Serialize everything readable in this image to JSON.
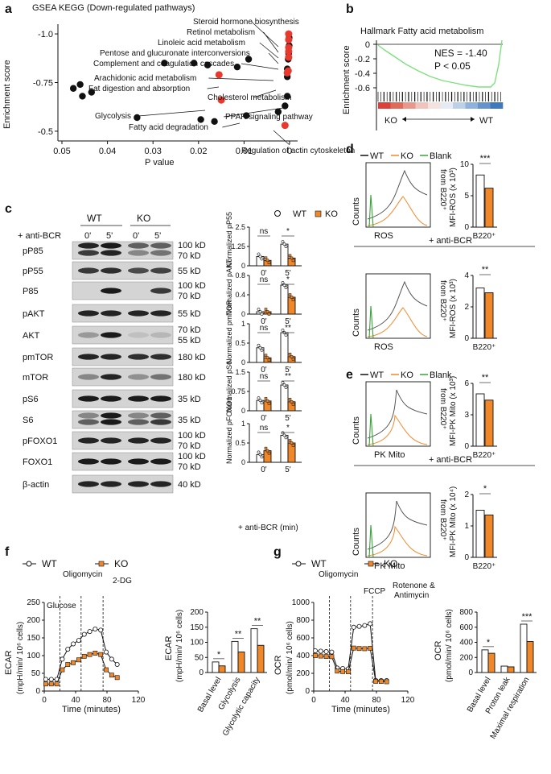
{
  "panel_labels": {
    "a": "a",
    "b": "b",
    "c": "c",
    "d": "d",
    "e": "e",
    "f": "f",
    "g": "g"
  },
  "colors": {
    "red": "#e8392e",
    "orange": "#f0882a",
    "green": "#3aa23a",
    "black": "#111111",
    "gsea_line": "#7fe07f"
  },
  "panel_a": {
    "title": "GSEA KEGG (Down-regulated pathways)",
    "ylabel": "Enrichment score",
    "xlabel": "P value",
    "annotations": [
      "Steroid hormone biosynthesis",
      "Retinol metabolism",
      "Linoleic acid metabolism",
      "Pentose and glucuronate interconversions",
      "Complement and coagulation cascades",
      "Arachidonic acid metabolism",
      "Fat digestion and absorption",
      "Cholesterol metabolism",
      "Glycolysis",
      "Fatty acid degradation",
      "PPAR signaling pathway",
      "Regulation of actin cytoskeleton"
    ]
  },
  "panel_b": {
    "title": "Hallmark Fatty acid metabolism",
    "ylabel": "Enrichment score",
    "nes": "NES = -1.40",
    "p": "P < 0.05",
    "left": "KO",
    "right": "WT"
  },
  "panel_c": {
    "treatment": "+ anti-BCR",
    "groups": [
      "WT",
      "KO"
    ],
    "times": [
      "0'",
      "5'",
      "0'",
      "5'"
    ],
    "blots": [
      {
        "name": "pP85",
        "mw": [
          "100 kD",
          "70 kD"
        ]
      },
      {
        "name": "pP55",
        "mw": [
          "55 kD"
        ]
      },
      {
        "name": "P85",
        "mw": [
          "100 kD",
          "70 kD"
        ]
      },
      {
        "name": "pAKT",
        "mw": [
          "55 kD"
        ]
      },
      {
        "name": "AKT",
        "mw": [
          "70 kD",
          "55 kD"
        ]
      },
      {
        "name": "pmTOR",
        "mw": [
          "180 kD"
        ]
      },
      {
        "name": "mTOR",
        "mw": [
          "180 kD"
        ]
      },
      {
        "name": "pS6",
        "mw": [
          "35 kD"
        ]
      },
      {
        "name": "S6",
        "mw": [
          "35 kD"
        ]
      },
      {
        "name": "pFOXO1",
        "mw": [
          "100 kD",
          "70 kD"
        ]
      },
      {
        "name": "FOXO1",
        "mw": [
          "100 kD",
          "70 kD"
        ]
      },
      {
        "name": "β-actin",
        "mw": [
          "40 kD"
        ]
      }
    ],
    "legend": [
      "WT",
      "KO"
    ],
    "xlabel": "+ anti-BCR (min)"
  },
  "panel_d": {
    "legend": [
      "WT",
      "KO",
      "Blank"
    ],
    "treat": "+ anti-BCR",
    "xlabel": "ROS",
    "gate": "from B220⁺",
    "ylabel": "Counts",
    "bar_ylabel": "MFI-ROS (x 10³)",
    "cat": "B220⁺"
  },
  "panel_e": {
    "legend": [
      "WT",
      "KO",
      "Blank"
    ],
    "treat": "+ anti-BCR",
    "xlabel": "PK Mito",
    "gate": "from B220⁺",
    "ylabel": "Counts",
    "bar_ylabel_top": "MFI-PK Mito (x 10³)",
    "bar_ylabel_bot": "MFI-PK Mito (x 10⁴)",
    "cat": "B220⁺"
  },
  "panel_f": {
    "legend": [
      "WT",
      "KO"
    ],
    "events": [
      "Glucose",
      "Oligomycin",
      "2-DG"
    ],
    "ylabel": "ECAR",
    "yunit": "(mpH/min/ 10⁶ cells)",
    "xlabel": "Time (minutes)",
    "bar_cats": [
      "Basal level",
      "Glycolysis",
      "Glycolytic capacity"
    ]
  },
  "panel_g": {
    "legend": [
      "WT",
      "KO"
    ],
    "events": [
      "Oligomycin",
      "FCCP",
      "Rotenone &",
      "Antimycin"
    ],
    "ylabel": "OCR",
    "yunit": "(pmol/min/ 10⁶ cells)",
    "xlabel": "Time (minutes)",
    "bar_cats": [
      "Basal level",
      "Proton leak",
      "Maximal respiration"
    ]
  },
  "chart_data": [
    {
      "type": "scatter",
      "panel": "a",
      "title": "GSEA KEGG (Down-regulated pathways)",
      "xlabel": "P value",
      "ylabel": "Enrichment score",
      "xlim": [
        0.05,
        0
      ],
      "ylim": [
        -0.45,
        -1.05
      ],
      "xticks": [
        "0.05",
        "0.04",
        "0.03",
        "0.02",
        "0.01",
        "0"
      ],
      "yticks": [
        "-1.0",
        "-0.75",
        "-0.5"
      ],
      "black_points": [
        [
          0.0475,
          -0.72
        ],
        [
          0.046,
          -0.74
        ],
        [
          0.0455,
          -0.68
        ],
        [
          0.0435,
          -0.7
        ],
        [
          0.0335,
          -0.57
        ],
        [
          0.0275,
          -0.85
        ],
        [
          0.021,
          -0.85
        ],
        [
          0.0195,
          -0.56
        ],
        [
          0.018,
          -0.84
        ],
        [
          0.0165,
          -0.55
        ],
        [
          0.0115,
          -0.83
        ],
        [
          0.009,
          -0.87
        ],
        [
          0.0095,
          -0.58
        ],
        [
          0.0025,
          -0.6
        ],
        [
          0.001,
          -0.63
        ],
        [
          0.0005,
          -0.68
        ],
        [
          0.0005,
          -0.78
        ],
        [
          0.0005,
          -0.82
        ],
        [
          0.0003,
          -0.87
        ],
        [
          0.0002,
          -0.9
        ],
        [
          0.0001,
          -0.94
        ],
        [
          0.0001,
          -0.98
        ]
      ],
      "red_points": [
        [
          0.0002,
          -1.0
        ],
        [
          0.0002,
          -0.97
        ],
        [
          0.0002,
          -0.93
        ],
        [
          0.0002,
          -0.91
        ],
        [
          0.0002,
          -0.88
        ],
        [
          0.0005,
          -0.8
        ],
        [
          0.0003,
          -0.81
        ],
        [
          0.0155,
          -0.79
        ],
        [
          0.015,
          -0.66
        ],
        [
          0.001,
          -0.53
        ]
      ]
    },
    {
      "type": "bar",
      "panel": "c",
      "ylabel": "Normalized pP55",
      "categories": [
        "0'",
        "5'"
      ],
      "series": [
        {
          "name": "WT",
          "values": [
            0.6,
            1.4
          ]
        },
        {
          "name": "KO",
          "values": [
            0.35,
            0.5
          ]
        }
      ],
      "ylim": [
        0,
        2.5
      ],
      "stats": [
        "ns",
        "*"
      ]
    },
    {
      "type": "bar",
      "panel": "c",
      "ylabel": "Normalized pAKT",
      "categories": [
        "0'",
        "5'"
      ],
      "series": [
        {
          "name": "WT",
          "values": [
            0.05,
            0.6
          ]
        },
        {
          "name": "KO",
          "values": [
            0.05,
            0.35
          ]
        }
      ],
      "ylim": [
        0,
        0.8
      ],
      "stats": [
        "ns",
        "*"
      ]
    },
    {
      "type": "bar",
      "panel": "c",
      "ylabel": "Normalized pmTOR",
      "categories": [
        "0'",
        "5'"
      ],
      "series": [
        {
          "name": "WT",
          "values": [
            0.38,
            0.77
          ]
        },
        {
          "name": "KO",
          "values": [
            0.12,
            0.15
          ]
        }
      ],
      "ylim": [
        0,
        1.0
      ],
      "stats": [
        "ns",
        "**"
      ]
    },
    {
      "type": "bar",
      "panel": "c",
      "ylabel": "Normalized pS6",
      "categories": [
        "0'",
        "5'"
      ],
      "series": [
        {
          "name": "WT",
          "values": [
            0.4,
            1.0
          ]
        },
        {
          "name": "KO",
          "values": [
            0.38,
            0.35
          ]
        }
      ],
      "ylim": [
        0,
        1.5
      ],
      "stats": [
        "ns",
        "**"
      ]
    },
    {
      "type": "bar",
      "panel": "c",
      "ylabel": "Normalized pFOXO1",
      "categories": [
        "0'",
        "5'"
      ],
      "series": [
        {
          "name": "WT",
          "values": [
            0.2,
            0.7
          ]
        },
        {
          "name": "KO",
          "values": [
            0.3,
            0.5
          ]
        }
      ],
      "ylim": [
        0,
        1.0
      ],
      "stats": [
        "ns",
        "*"
      ]
    },
    {
      "type": "bar",
      "panel": "d",
      "ylabel": "MFI-ROS (x 10³)",
      "categories": [
        "B220⁺"
      ],
      "series": [
        {
          "name": "WT",
          "values": [
            8.3
          ]
        },
        {
          "name": "KO",
          "values": [
            6.2
          ]
        }
      ],
      "ylim": [
        0,
        10
      ],
      "stats": [
        "***"
      ]
    },
    {
      "type": "bar",
      "panel": "d",
      "ylabel": "MFI-ROS (x 10³)",
      "categories": [
        "B220⁺"
      ],
      "series": [
        {
          "name": "WT",
          "values": [
            3.2
          ]
        },
        {
          "name": "KO",
          "values": [
            2.9
          ]
        }
      ],
      "ylim": [
        0,
        4
      ],
      "stats": [
        "**"
      ]
    },
    {
      "type": "bar",
      "panel": "e",
      "ylabel": "MFI-PK Mito (x 10³)",
      "categories": [
        "B220⁺"
      ],
      "series": [
        {
          "name": "WT",
          "values": [
            5.0
          ]
        },
        {
          "name": "KO",
          "values": [
            4.4
          ]
        }
      ],
      "ylim": [
        0,
        6
      ],
      "stats": [
        "**"
      ]
    },
    {
      "type": "bar",
      "panel": "e",
      "ylabel": "MFI-PK Mito (x 10⁴)",
      "categories": [
        "B220⁺"
      ],
      "series": [
        {
          "name": "WT",
          "values": [
            1.5
          ]
        },
        {
          "name": "KO",
          "values": [
            1.35
          ]
        }
      ],
      "ylim": [
        0,
        2
      ],
      "stats": [
        "*"
      ]
    },
    {
      "type": "line",
      "panel": "f",
      "xlabel": "Time (minutes)",
      "ylabel": "ECAR (mpH/min/ 10⁶ cells)",
      "xlim": [
        0,
        120
      ],
      "ylim": [
        0,
        250
      ],
      "x": [
        2,
        9,
        16,
        23,
        30,
        37,
        44,
        51,
        58,
        65,
        72,
        79,
        86,
        93
      ],
      "series": [
        {
          "name": "WT",
          "values": [
            33,
            33,
            33,
            90,
            118,
            133,
            143,
            160,
            168,
            175,
            172,
            110,
            90,
            75
          ]
        },
        {
          "name": "KO",
          "values": [
            20,
            20,
            20,
            60,
            75,
            80,
            88,
            98,
            103,
            107,
            103,
            60,
            45,
            38
          ]
        }
      ]
    },
    {
      "type": "bar",
      "panel": "f",
      "ylabel": "ECAR (mpH/min/ 10⁶ cells)",
      "categories": [
        "Basal level",
        "Glycolysis",
        "Glycolytic capacity"
      ],
      "series": [
        {
          "name": "WT",
          "values": [
            35,
            103,
            145
          ]
        },
        {
          "name": "KO",
          "values": [
            22,
            68,
            90
          ]
        }
      ],
      "ylim": [
        0,
        200
      ],
      "stats": [
        "*",
        "**",
        "**"
      ]
    },
    {
      "type": "line",
      "panel": "g",
      "xlabel": "Time (minutes)",
      "ylabel": "OCR (pmol/min/ 10⁶ cells)",
      "xlim": [
        0,
        120
      ],
      "ylim": [
        0,
        1000
      ],
      "x": [
        2,
        9,
        16,
        23,
        30,
        37,
        44,
        51,
        58,
        65,
        72,
        79,
        86,
        93
      ],
      "series": [
        {
          "name": "WT",
          "values": [
            455,
            450,
            445,
            440,
            260,
            255,
            250,
            720,
            730,
            740,
            760,
            120,
            118,
            118
          ]
        },
        {
          "name": "KO",
          "values": [
            400,
            395,
            390,
            388,
            225,
            220,
            218,
            485,
            480,
            478,
            483,
            110,
            108,
            105
          ]
        }
      ]
    },
    {
      "type": "bar",
      "panel": "g",
      "ylabel": "OCR (pmol/min/ 10⁶ cells)",
      "categories": [
        "Basal level",
        "Proton leak",
        "Maximal respiration"
      ],
      "series": [
        {
          "name": "WT",
          "values": [
            300,
            85,
            640
          ]
        },
        {
          "name": "KO",
          "values": [
            255,
            75,
            410
          ]
        }
      ],
      "ylim": [
        0,
        800
      ],
      "stats": [
        "*",
        "",
        "***"
      ]
    }
  ]
}
